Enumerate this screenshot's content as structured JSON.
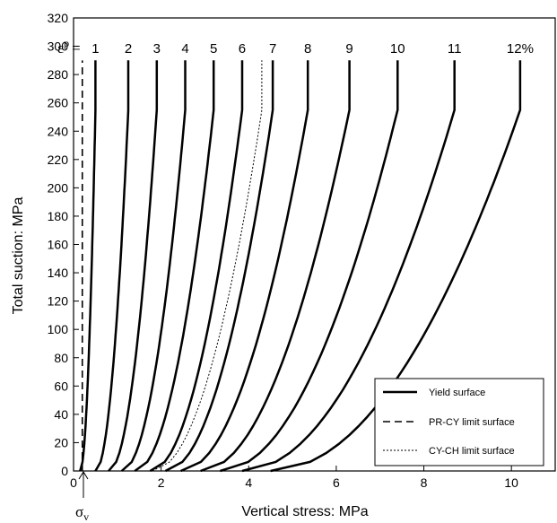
{
  "chart_data": {
    "type": "line",
    "xlabel": "Vertical stress: MPa",
    "ylabel": "Total suction: MPa",
    "xlim": [
      0,
      11
    ],
    "ylim": [
      0,
      320
    ],
    "xticks": [
      0,
      2,
      4,
      6,
      8,
      10
    ],
    "yticks": [
      0,
      20,
      40,
      60,
      80,
      100,
      120,
      140,
      160,
      180,
      200,
      220,
      240,
      260,
      280,
      300,
      320
    ],
    "grid": false,
    "legend_position": "bottom-right",
    "legend": [
      {
        "label": "Yield surface",
        "style": "solid"
      },
      {
        "label": "PR-CY limit surface",
        "style": "dashed"
      },
      {
        "label": "CY-CH limit surface",
        "style": "dotted"
      }
    ],
    "strain_label": "ε",
    "strain_superscript": "p",
    "strain_equals": "=",
    "sigma_label": "σ",
    "sigma_subscript": "v",
    "yield_surfaces": [
      {
        "label": "1",
        "x0": 0.15,
        "x_top": 0.5
      },
      {
        "label": "2",
        "x0": 0.5,
        "x_top": 1.25
      },
      {
        "label": "3",
        "x0": 0.8,
        "x_top": 1.9
      },
      {
        "label": "4",
        "x0": 1.1,
        "x_top": 2.55
      },
      {
        "label": "5",
        "x0": 1.4,
        "x_top": 3.2
      },
      {
        "label": "6",
        "x0": 1.75,
        "x_top": 3.85
      },
      {
        "label": "7",
        "x0": 2.1,
        "x_top": 4.55
      },
      {
        "label": "8",
        "x0": 2.45,
        "x_top": 5.35
      },
      {
        "label": "9",
        "x0": 2.9,
        "x_top": 6.3
      },
      {
        "label": "10",
        "x0": 3.35,
        "x_top": 7.4
      },
      {
        "label": "11",
        "x0": 3.85,
        "x_top": 8.7
      },
      {
        "label": "12%",
        "x0": 4.5,
        "x_top": 10.2
      }
    ],
    "yield_knee_suction": 255,
    "yield_top_suction": 290,
    "pr_cy_limit": {
      "x": 0.2,
      "y_range": [
        0,
        290
      ]
    },
    "cy_ch_limit": {
      "x0": 1.8,
      "x_knee": 4.3,
      "y_knee": 255,
      "y_top": 290
    }
  }
}
